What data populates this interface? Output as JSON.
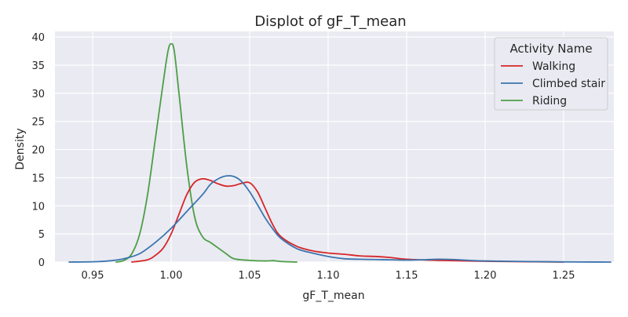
{
  "chart_data": {
    "type": "line",
    "title": "Displot of gF_T_mean",
    "xlabel": "gF_T_mean",
    "ylabel": "Density",
    "xlim": [
      0.926,
      1.282
    ],
    "ylim": [
      0,
      41
    ],
    "xticks": [
      0.95,
      1.0,
      1.05,
      1.1,
      1.15,
      1.2,
      1.25
    ],
    "xtick_labels": [
      "0.95",
      "1.00",
      "1.05",
      "1.10",
      "1.15",
      "1.20",
      "1.25"
    ],
    "yticks": [
      0,
      5,
      10,
      15,
      20,
      25,
      30,
      35,
      40
    ],
    "ytick_labels": [
      "0",
      "5",
      "10",
      "15",
      "20",
      "25",
      "30",
      "35",
      "40"
    ],
    "grid": true,
    "legend": {
      "title": "Activity Name",
      "placement": "top-right"
    },
    "series": [
      {
        "name": "Walking",
        "color": "#d62728",
        "x": [
          0.975,
          0.985,
          0.99,
          0.995,
          1.0,
          1.005,
          1.01,
          1.015,
          1.02,
          1.025,
          1.03,
          1.035,
          1.04,
          1.045,
          1.05,
          1.055,
          1.06,
          1.065,
          1.07,
          1.08,
          1.09,
          1.1,
          1.11,
          1.12,
          1.13,
          1.14,
          1.15,
          1.17,
          1.2,
          1.23,
          1.25
        ],
        "y": [
          0.0,
          0.4,
          1.2,
          2.5,
          5.0,
          8.5,
          12.0,
          14.2,
          14.8,
          14.5,
          13.9,
          13.5,
          13.6,
          14.0,
          14.1,
          12.5,
          9.5,
          6.5,
          4.5,
          2.8,
          2.0,
          1.6,
          1.4,
          1.1,
          1.0,
          0.8,
          0.5,
          0.3,
          0.15,
          0.05,
          0.0
        ]
      },
      {
        "name": "Climbed stair",
        "color": "#3b75af",
        "x": [
          0.935,
          0.95,
          0.96,
          0.97,
          0.98,
          0.99,
          1.0,
          1.01,
          1.02,
          1.025,
          1.03,
          1.035,
          1.04,
          1.045,
          1.05,
          1.055,
          1.06,
          1.065,
          1.07,
          1.08,
          1.09,
          1.1,
          1.11,
          1.12,
          1.13,
          1.14,
          1.15,
          1.16,
          1.17,
          1.18,
          1.19,
          1.2,
          1.22,
          1.24,
          1.26,
          1.28
        ],
        "y": [
          0.0,
          0.05,
          0.2,
          0.6,
          1.5,
          3.5,
          6.0,
          9.0,
          12.0,
          13.8,
          14.8,
          15.3,
          15.2,
          14.3,
          12.5,
          10.2,
          7.8,
          5.8,
          4.2,
          2.4,
          1.6,
          1.0,
          0.6,
          0.5,
          0.45,
          0.4,
          0.35,
          0.4,
          0.5,
          0.45,
          0.3,
          0.2,
          0.12,
          0.06,
          0.02,
          0.0
        ]
      },
      {
        "name": "Riding",
        "color": "#4c9e46",
        "x": [
          0.965,
          0.97,
          0.975,
          0.98,
          0.985,
          0.99,
          0.995,
          0.998,
          1.0,
          1.002,
          1.005,
          1.01,
          1.015,
          1.02,
          1.025,
          1.03,
          1.035,
          1.04,
          1.05,
          1.06,
          1.065,
          1.07,
          1.08
        ],
        "y": [
          0.0,
          0.3,
          1.5,
          5.0,
          12.0,
          22.0,
          32.0,
          37.5,
          38.8,
          37.5,
          30.0,
          17.0,
          8.0,
          4.5,
          3.5,
          2.5,
          1.5,
          0.6,
          0.3,
          0.2,
          0.25,
          0.1,
          0.0
        ]
      }
    ]
  }
}
